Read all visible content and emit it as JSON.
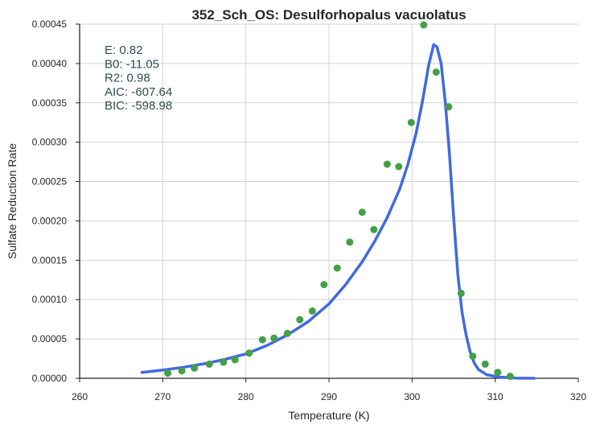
{
  "chart_data": {
    "type": "scatter",
    "title": "352_Sch_OS: Desulforhopalus vacuolatus",
    "xlabel": "Temperature (K)",
    "ylabel": "Sulfate Reduction Rate",
    "xlim": [
      260,
      320
    ],
    "ylim": [
      0,
      0.00045
    ],
    "x_ticks": [
      "260",
      "270",
      "280",
      "290",
      "300",
      "310",
      "320"
    ],
    "y_ticks": [
      "0.00000",
      "0.00005",
      "0.00010",
      "0.00015",
      "0.00020",
      "0.00025",
      "0.00030",
      "0.00035",
      "0.00040",
      "0.00045"
    ],
    "grid": true,
    "annotations": [
      "E:  0.82",
      "B0:  -11.05",
      "R2:  0.98",
      "AIC: -607.64",
      "BIC: -598.98"
    ],
    "series": [
      {
        "kind": "scatter",
        "color": "#43a047",
        "points": [
          [
            270.6,
            6.5e-06
          ],
          [
            272.3,
            9.5e-06
          ],
          [
            273.8,
            1.3e-05
          ],
          [
            275.6,
            1.8e-05
          ],
          [
            277.3,
            2.05e-05
          ],
          [
            278.7,
            2.35e-05
          ],
          [
            280.4,
            3.2e-05
          ],
          [
            282.0,
            4.9e-05
          ],
          [
            283.4,
            5.1e-05
          ],
          [
            285.0,
            5.7e-05
          ],
          [
            286.5,
            7.45e-05
          ],
          [
            288.0,
            8.55e-05
          ],
          [
            289.4,
            0.000119
          ],
          [
            291.0,
            0.00014
          ],
          [
            292.5,
            0.000173
          ],
          [
            294.0,
            0.000211
          ],
          [
            295.4,
            0.000189
          ],
          [
            297.0,
            0.000272
          ],
          [
            298.4,
            0.000269
          ],
          [
            299.9,
            0.000325
          ],
          [
            301.4,
            0.000449
          ],
          [
            302.9,
            0.000389
          ],
          [
            304.4,
            0.000345
          ],
          [
            305.9,
            0.000108
          ],
          [
            307.3,
            2.8e-05
          ],
          [
            308.8,
            1.8e-05
          ],
          [
            310.3,
            7.5e-06
          ],
          [
            311.8,
            2.5e-06
          ]
        ]
      },
      {
        "kind": "line",
        "color": "#4169e1",
        "points": [
          [
            267.5,
            7.5e-06
          ],
          [
            270.0,
            1.05e-05
          ],
          [
            272.5,
            1.4e-05
          ],
          [
            275.0,
            1.85e-05
          ],
          [
            277.5,
            2.4e-05
          ],
          [
            280.0,
            3.1e-05
          ],
          [
            282.5,
            4.15e-05
          ],
          [
            285.0,
            5.5e-05
          ],
          [
            287.5,
            7.2e-05
          ],
          [
            290.0,
            9.45e-05
          ],
          [
            292.0,
            0.000119
          ],
          [
            294.0,
            0.000148
          ],
          [
            295.5,
            0.000174
          ],
          [
            297.0,
            0.000204
          ],
          [
            298.5,
            0.00024
          ],
          [
            299.5,
            0.000272
          ],
          [
            300.5,
            0.000312
          ],
          [
            301.3,
            0.000355
          ],
          [
            302.0,
            0.000398
          ],
          [
            302.6,
            0.000424
          ],
          [
            303.0,
            0.000421
          ],
          [
            303.5,
            0.0004
          ],
          [
            304.0,
            0.00035
          ],
          [
            304.5,
            0.000285
          ],
          [
            305.0,
            0.000205
          ],
          [
            305.5,
            0.000132
          ],
          [
            306.0,
            8.5e-05
          ],
          [
            306.5,
            5.5e-05
          ],
          [
            307.0,
            3.3e-05
          ],
          [
            307.5,
            1.9e-05
          ],
          [
            308.0,
            1.1e-05
          ],
          [
            309.0,
            4.5e-06
          ],
          [
            310.5,
            1.5e-06
          ],
          [
            312.5,
            3e-07
          ],
          [
            314.7,
            0.0
          ]
        ]
      }
    ]
  }
}
